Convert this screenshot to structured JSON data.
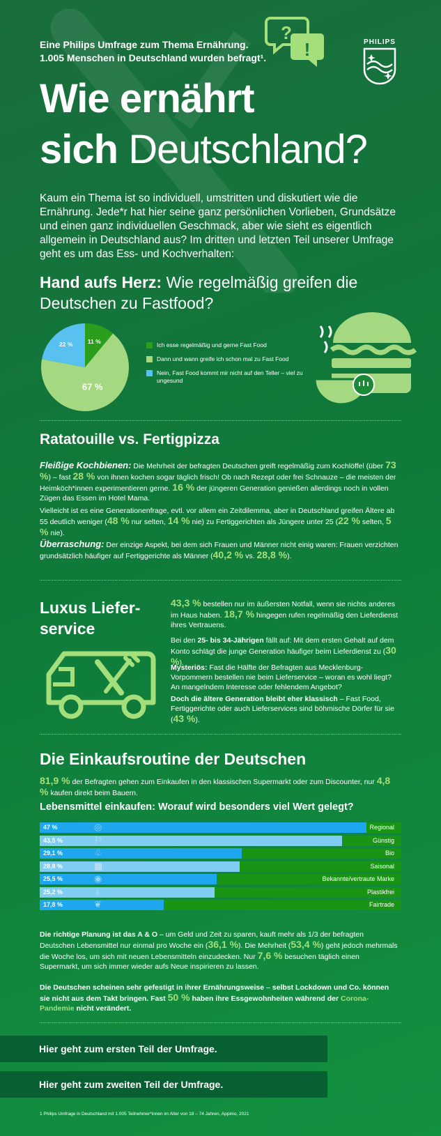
{
  "header": {
    "intro_line1": "Eine Philips Umfrage zum Thema Ernährung.",
    "intro_line2": "1.005 Menschen in Deutschland wurden  befragt¹.",
    "logo_text": "PHILIPS",
    "title_line1": "Wie ernährt",
    "title_line2_bold": "sich",
    "title_line2_light": "Deutschland?"
  },
  "intro_paragraph": "Kaum ein Thema ist so individuell, umstritten und diskutiert wie die Ernährung. Jede*r hat hier seine ganz persönlichen Vorlieben, Grundsätze und einen ganz individuellen Geschmack, aber wie sieht es eigentlich allgemein in Deutschland aus? Im dritten und letzten Teil unserer Umfrage geht es um das Ess- und Kochverhalten:",
  "fastfood": {
    "heading_bold": "Hand aufs Herz:",
    "heading_rest": "Wie regelmäßig greifen die Deutschen zu Fastfood?"
  },
  "ratatouille": {
    "heading": "Ratatouille vs. Fertigpizza",
    "p1_lead": "Fleißige Kochbienen:",
    "p1_a": "Die Mehrheit der befragten Deutschen greift regelmäßig zum Kochlöffel (über",
    "p1_v1": "73 %",
    "p1_b": ") – fast",
    "p1_v2": "28 %",
    "p1_c": "von ihnen kochen sogar täglich frisch! Ob nach Rezept oder frei Schnauze – die meisten der Heimköch*innen experimentieren gerne.",
    "p1_v3": "16 %",
    "p1_d": "der jüngeren Generation genießen allerdings noch in vollen Zügen das Essen im Hotel Mama.",
    "p2_a": "Vielleicht ist es eine Generationenfrage, evtl. vor allem ein Zeitdilemma, aber in Deutschland greifen Ältere ab 55 deutlich weniger (",
    "p2_v1": "48 %",
    "p2_b": "nur selten,",
    "p2_v2": "14 %",
    "p2_c": "nie) zu Fertiggerichten als Jüngere unter 25 (",
    "p2_v3": "22 %",
    "p2_d": "selten,",
    "p2_v4": "5 %",
    "p2_e": "nie).",
    "p3_lead": "Überraschung:",
    "p3_a": "Der einzige Aspekt, bei dem sich Frauen und Männer nicht einig waren: Frauen verzichten grundsätzlich häufiger auf Fertiggerichte als Männer (",
    "p3_v1": "40,2 %",
    "p3_b": "vs.",
    "p3_v2": "28,8 %",
    "p3_c": ")."
  },
  "luxus": {
    "heading_line1": "Luxus Liefer-",
    "heading_line2": "service",
    "p1_v1": "43,3 %",
    "p1_a": "bestellen nur im äußersten Notfall, wenn sie nichts anderes im Haus haben.",
    "p1_v2": "18,7 %",
    "p1_b": "hingegen rufen regelmäßig den Lieferdienst ihres Vertrauens.",
    "p2_a": "Bei den",
    "p2_bold": "25- bis 34-Jährigen",
    "p2_b": "fällt auf: Mit dem ersten Gehalt auf dem Konto schlägt die junge Generation häufiger beim Lieferdienst zu (",
    "p2_v1": "30 %",
    "p2_c": ").",
    "p3_bold": "Mysteriös:",
    "p3_a": "Fast die Hälfte der Befragten aus Mecklenburg-Vorpommern bestellen nie beim Lieferservice – woran es wohl liegt? An mangelndem Interesse oder fehlendem Angebot?",
    "p4_bold": "Doch die ältere Generation bleibt eher klassisch",
    "p4_a": "– Fast Food, Fertiggerichte oder auch Lieferservices sind böhmische Dörfer für sie (",
    "p4_v1": "43 %",
    "p4_b": ")."
  },
  "einkauf": {
    "heading": "Die Einkaufsroutine der Deutschen",
    "p1_v1": "81,9 %",
    "p1_a": "der Befragten gehen zum Einkaufen in den klassischen Supermarkt oder zum Discounter, nur",
    "p1_v2": "4,8 %",
    "p1_b": "kaufen direkt beim Bauern.",
    "subheading": "Lebensmittel einkaufen: Worauf wird besonders viel Wert gelegt?",
    "p2_bold": "Die richtige Planung ist das A & O",
    "p2_a": "– um Geld und Zeit zu sparen, kauft mehr als 1/3 der befragten Deutschen Lebensmittel nur einmal pro Woche ein (",
    "p2_v1": "36,1 %",
    "p2_b": "). Die Mehrheit (",
    "p2_v2": "53,4 %",
    "p2_c": ") geht jedoch mehrmals die Woche los, um sich mit neuen Lebensmitteln einzudecken. Nur",
    "p2_v3": "7,6 %",
    "p2_d": "besuchen täglich einen Supermarkt, um sich immer wieder aufs Neue inspirieren zu lassen.",
    "p3_a": "Die Deutschen scheinen sehr gefestigt in ihrer Ernährungsweise – selbst Lockdown und Co. können sie nicht aus dem Takt bringen. Fast",
    "p3_v1": "50 %",
    "p3_b": "haben ihre Essgewohnheiten während der",
    "p3_hl": "Corona-Pandemie",
    "p3_c": "nicht verändert."
  },
  "cta": {
    "first": "Hier geht zum ersten Teil der Umfrage.",
    "second": "Hier geht zum zweiten Teil der Umfrage."
  },
  "footnote": "1  Philips Umfrage in Deutschland mit 1.005 Teilnehmer*innen im Alter von 18 – 74 Jahren, Appinio, 2021",
  "colors": {
    "green_dark": "#1a9414",
    "light_green": "#a5df7b",
    "pie_green": "#2b9e1e",
    "pie_light": "#a5d981",
    "pie_blue": "#58c1f0",
    "bar_blue": "#1ea7ee",
    "bar_lightblue": "#7fcdf3"
  },
  "chart_data": [
    {
      "type": "pie",
      "labels": [
        "Ich esse regelmäßig und gerne Fast Food",
        "Dann und wann greife ich schon mal zu Fast Food",
        "Nein, Fast Food kommt mir nicht auf den Teller – viel zu ungesund"
      ],
      "label_texts": [
        "11 %",
        "67 %",
        "22 %"
      ],
      "values": [
        11,
        67,
        22
      ],
      "colors": [
        "#2b9e1e",
        "#a5d981",
        "#58c1f0"
      ],
      "legend": "right"
    },
    {
      "type": "bar",
      "orientation": "horizontal",
      "categories": [
        "Regional",
        "Günstig",
        "Bio",
        "Saisonal",
        "Bekannte/vertraute Marke",
        "Plastikfrei",
        "Fairtrade"
      ],
      "values": [
        47,
        43.5,
        29.1,
        28.8,
        25.5,
        25.2,
        17.8
      ],
      "value_labels": [
        "47 %",
        "43,5 %",
        "29,1 %",
        "28,8 %",
        "25,5 %",
        "25,2 %",
        "17,8 %"
      ],
      "bar_colors": [
        "#1ea7ee",
        "#7fcdf3",
        "#1ea7ee",
        "#7fcdf3",
        "#1ea7ee",
        "#7fcdf3",
        "#1ea7ee"
      ],
      "icons": [
        "globe-icon",
        "piggy-bank-icon",
        "hand-leaf-icon",
        "calendar-icon",
        "eye-icon",
        "plastic-free-icon",
        "leaf-icon"
      ],
      "xlim": [
        0,
        47
      ]
    }
  ]
}
